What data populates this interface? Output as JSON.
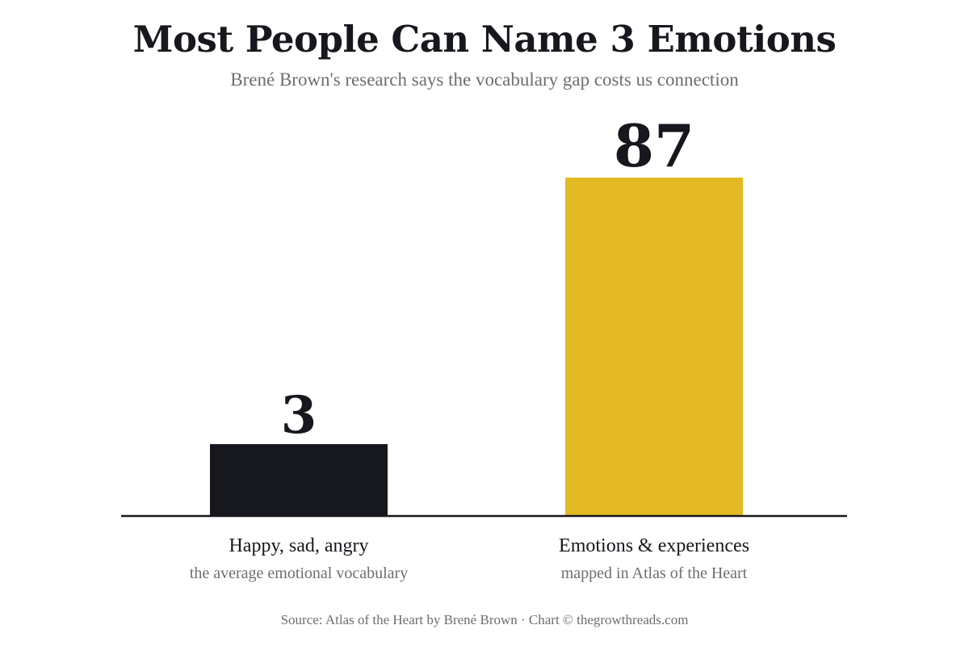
{
  "chart_data": {
    "type": "bar",
    "title": "Most People Can Name 3 Emotions",
    "subtitle": "Brené Brown's research says the vocabulary gap costs us connection",
    "categories": [
      "Happy, sad, angry",
      "Emotions & experiences"
    ],
    "category_sublabels": [
      "the average emotional vocabulary",
      "mapped in Atlas of the Heart"
    ],
    "values": [
      3,
      87
    ],
    "data_labels": [
      "3",
      "87"
    ],
    "colors": [
      "#17181d",
      "#e3b924"
    ],
    "ylim": [
      0,
      87
    ],
    "grid": false,
    "legend": "none",
    "source": "Source: Atlas of the Heart by Brené Brown · Chart © thegrowthreads.com"
  }
}
